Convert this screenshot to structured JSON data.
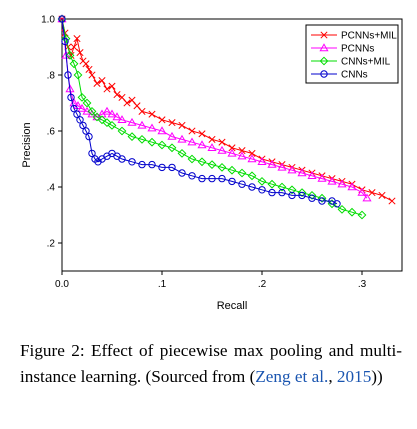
{
  "caption": {
    "main": "Figure 2: Effect of piecewise max pooling and multi-instance learning. (Sourced from (",
    "cite_author": "Zeng et al.",
    "cite_sep": ", ",
    "cite_year": "2015",
    "close": "))"
  },
  "chart_data": {
    "type": "line",
    "title": "",
    "xlabel": "Recall",
    "ylabel": "Precision",
    "xlim": [
      0,
      0.34
    ],
    "ylim": [
      0.1,
      1.0
    ],
    "x_ticks": [
      0,
      0.1,
      0.2,
      0.3
    ],
    "x_tick_labels": [
      "0.0",
      ".1",
      ".2",
      ".3"
    ],
    "y_ticks": [
      0.2,
      0.4,
      0.6,
      0.8,
      1.0
    ],
    "y_tick_labels": [
      ".2",
      ".4",
      ".6",
      ".8",
      "1.0"
    ],
    "grid": false,
    "legend_position": "top-right",
    "series": [
      {
        "name": "PCNNs+MIL",
        "color": "#ff0000",
        "marker": "x",
        "x": [
          0.0,
          0.003,
          0.006,
          0.009,
          0.012,
          0.015,
          0.018,
          0.021,
          0.024,
          0.027,
          0.03,
          0.035,
          0.04,
          0.045,
          0.05,
          0.055,
          0.06,
          0.065,
          0.07,
          0.075,
          0.08,
          0.09,
          0.1,
          0.11,
          0.12,
          0.13,
          0.14,
          0.15,
          0.16,
          0.17,
          0.18,
          0.19,
          0.2,
          0.21,
          0.22,
          0.23,
          0.24,
          0.25,
          0.26,
          0.27,
          0.28,
          0.29,
          0.3,
          0.31,
          0.32,
          0.33
        ],
        "y": [
          1.0,
          0.95,
          0.9,
          0.87,
          0.9,
          0.93,
          0.88,
          0.85,
          0.84,
          0.82,
          0.8,
          0.77,
          0.78,
          0.75,
          0.76,
          0.73,
          0.72,
          0.7,
          0.71,
          0.69,
          0.67,
          0.66,
          0.64,
          0.63,
          0.62,
          0.6,
          0.59,
          0.57,
          0.56,
          0.54,
          0.53,
          0.52,
          0.5,
          0.49,
          0.48,
          0.47,
          0.46,
          0.45,
          0.44,
          0.43,
          0.42,
          0.41,
          0.39,
          0.38,
          0.37,
          0.35
        ]
      },
      {
        "name": "PCNNs",
        "color": "#ff00ff",
        "marker": "triangle",
        "x": [
          0.0,
          0.004,
          0.008,
          0.012,
          0.016,
          0.02,
          0.025,
          0.03,
          0.035,
          0.04,
          0.045,
          0.05,
          0.055,
          0.06,
          0.07,
          0.08,
          0.09,
          0.1,
          0.11,
          0.12,
          0.13,
          0.14,
          0.15,
          0.16,
          0.17,
          0.18,
          0.19,
          0.2,
          0.21,
          0.22,
          0.23,
          0.24,
          0.25,
          0.26,
          0.27,
          0.28,
          0.29,
          0.3,
          0.305
        ],
        "y": [
          1.0,
          0.87,
          0.75,
          0.7,
          0.69,
          0.68,
          0.67,
          0.66,
          0.65,
          0.66,
          0.67,
          0.66,
          0.65,
          0.64,
          0.63,
          0.62,
          0.61,
          0.6,
          0.58,
          0.57,
          0.56,
          0.55,
          0.54,
          0.53,
          0.52,
          0.51,
          0.5,
          0.49,
          0.48,
          0.47,
          0.46,
          0.45,
          0.44,
          0.43,
          0.42,
          0.41,
          0.4,
          0.38,
          0.36
        ]
      },
      {
        "name": "CNNs+MIL",
        "color": "#00dd00",
        "marker": "diamond",
        "x": [
          0.0,
          0.004,
          0.008,
          0.012,
          0.016,
          0.02,
          0.025,
          0.03,
          0.035,
          0.04,
          0.045,
          0.05,
          0.06,
          0.07,
          0.08,
          0.09,
          0.1,
          0.11,
          0.12,
          0.13,
          0.14,
          0.15,
          0.16,
          0.17,
          0.18,
          0.19,
          0.2,
          0.21,
          0.22,
          0.23,
          0.24,
          0.25,
          0.26,
          0.27,
          0.28,
          0.29,
          0.3
        ],
        "y": [
          1.0,
          0.93,
          0.87,
          0.84,
          0.8,
          0.72,
          0.7,
          0.67,
          0.65,
          0.64,
          0.63,
          0.62,
          0.6,
          0.58,
          0.57,
          0.56,
          0.55,
          0.54,
          0.52,
          0.5,
          0.49,
          0.48,
          0.47,
          0.46,
          0.45,
          0.44,
          0.42,
          0.41,
          0.4,
          0.39,
          0.38,
          0.37,
          0.36,
          0.34,
          0.32,
          0.31,
          0.3
        ]
      },
      {
        "name": "CNNs",
        "color": "#0000cc",
        "marker": "circle",
        "x": [
          0.0,
          0.003,
          0.006,
          0.009,
          0.012,
          0.015,
          0.018,
          0.021,
          0.024,
          0.027,
          0.03,
          0.033,
          0.036,
          0.04,
          0.045,
          0.05,
          0.055,
          0.06,
          0.07,
          0.08,
          0.09,
          0.1,
          0.11,
          0.12,
          0.13,
          0.14,
          0.15,
          0.16,
          0.17,
          0.18,
          0.19,
          0.2,
          0.21,
          0.22,
          0.23,
          0.24,
          0.25,
          0.26,
          0.27,
          0.275
        ],
        "y": [
          1.0,
          0.92,
          0.8,
          0.72,
          0.68,
          0.66,
          0.64,
          0.62,
          0.6,
          0.58,
          0.52,
          0.5,
          0.49,
          0.5,
          0.51,
          0.52,
          0.51,
          0.5,
          0.49,
          0.48,
          0.48,
          0.47,
          0.47,
          0.45,
          0.44,
          0.43,
          0.43,
          0.43,
          0.42,
          0.41,
          0.4,
          0.39,
          0.38,
          0.38,
          0.37,
          0.37,
          0.36,
          0.35,
          0.35,
          0.34
        ]
      }
    ]
  }
}
